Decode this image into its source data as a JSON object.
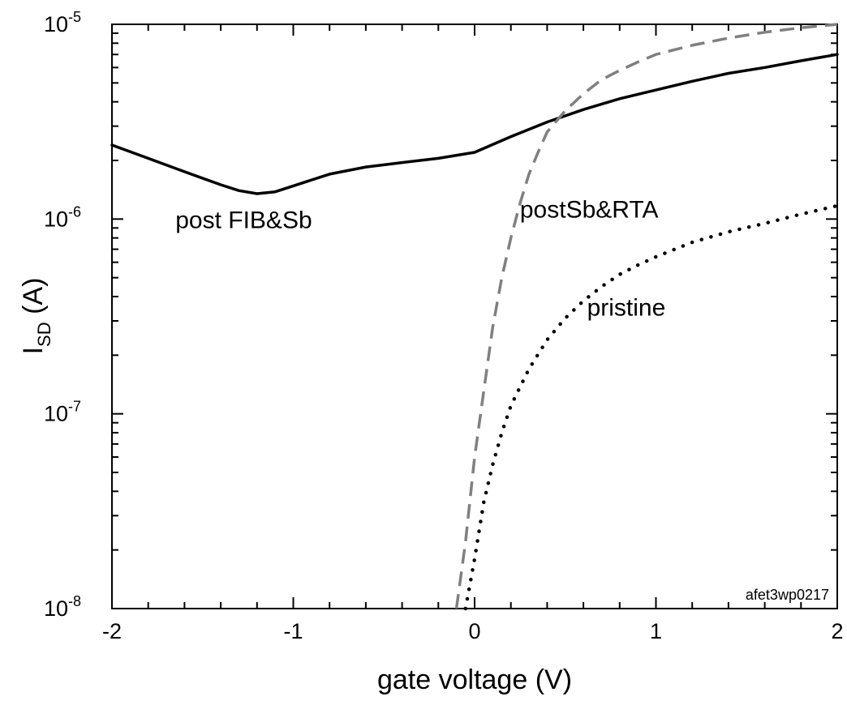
{
  "chart_data": {
    "type": "line",
    "title": "",
    "xlabel": "gate voltage (V)",
    "ylabel": {
      "main": "I",
      "subscript": "SD",
      "unit": " (A)"
    },
    "xlim": [
      -2,
      2
    ],
    "ylim": [
      1e-08,
      1e-05
    ],
    "yscale": "log",
    "grid": false,
    "x_ticks": [
      "-2",
      "-1",
      "0",
      "1",
      "2"
    ],
    "y_ticks": [
      {
        "base": "10",
        "exp": "-8",
        "value": 1e-08
      },
      {
        "base": "10",
        "exp": "-7",
        "value": 1e-07
      },
      {
        "base": "10",
        "exp": "-6",
        "value": 1e-06
      },
      {
        "base": "10",
        "exp": "-5",
        "value": 1e-05
      }
    ],
    "watermark": "afet3wp0217",
    "series": [
      {
        "name": "post FIB&Sb",
        "style": "solid",
        "color": "#000000",
        "x": [
          -2.0,
          -1.8,
          -1.6,
          -1.4,
          -1.3,
          -1.2,
          -1.1,
          -1.0,
          -0.8,
          -0.6,
          -0.4,
          -0.2,
          0.0,
          0.2,
          0.4,
          0.6,
          0.8,
          1.0,
          1.2,
          1.4,
          1.6,
          1.8,
          2.0
        ],
        "y": [
          2.4e-06,
          2.05e-06,
          1.75e-06,
          1.5e-06,
          1.4e-06,
          1.35e-06,
          1.38e-06,
          1.48e-06,
          1.7e-06,
          1.85e-06,
          1.95e-06,
          2.05e-06,
          2.2e-06,
          2.65e-06,
          3.15e-06,
          3.65e-06,
          4.15e-06,
          4.6e-06,
          5.1e-06,
          5.6e-06,
          6e-06,
          6.5e-06,
          7e-06
        ]
      },
      {
        "name": "postSb&RTA",
        "style": "dashed",
        "color": "#808080",
        "x": [
          -0.1,
          -0.05,
          0.0,
          0.05,
          0.1,
          0.15,
          0.2,
          0.25,
          0.3,
          0.35,
          0.4,
          0.5,
          0.6,
          0.7,
          0.8,
          0.9,
          1.0,
          1.2,
          1.4,
          1.6,
          1.8,
          2.0
        ],
        "y": [
          1e-08,
          2.2e-08,
          6e-08,
          1.3e-07,
          2.8e-07,
          5e-07,
          8e-07,
          1.2e-06,
          1.7e-06,
          2.2e-06,
          2.8e-06,
          3.6e-06,
          4.4e-06,
          5.2e-06,
          5.8e-06,
          6.4e-06,
          7e-06,
          7.8e-06,
          8.5e-06,
          9.1e-06,
          9.6e-06,
          1e-05
        ]
      },
      {
        "name": "pristine",
        "style": "dotted",
        "color": "#000000",
        "x": [
          -0.05,
          0.0,
          0.05,
          0.1,
          0.15,
          0.2,
          0.3,
          0.4,
          0.5,
          0.6,
          0.7,
          0.8,
          0.9,
          1.0,
          1.2,
          1.4,
          1.6,
          1.8,
          2.0
        ],
        "y": [
          1e-08,
          1.8e-08,
          3.5e-08,
          5.5e-08,
          8e-08,
          1.1e-07,
          1.7e-07,
          2.4e-07,
          3.1e-07,
          3.8e-07,
          4.5e-07,
          5.2e-07,
          5.8e-07,
          6.4e-07,
          7.6e-07,
          8.6e-07,
          9.5e-07,
          1.06e-06,
          1.17e-06
        ]
      }
    ],
    "annotations": [
      {
        "text": "post FIB&Sb",
        "x": -1.65,
        "y": 9e-07
      },
      {
        "text": "postSb&RTA",
        "x": 0.25,
        "y": 1.02e-06
      },
      {
        "text": "pristine",
        "x": 0.62,
        "y": 3.2e-07
      }
    ]
  }
}
